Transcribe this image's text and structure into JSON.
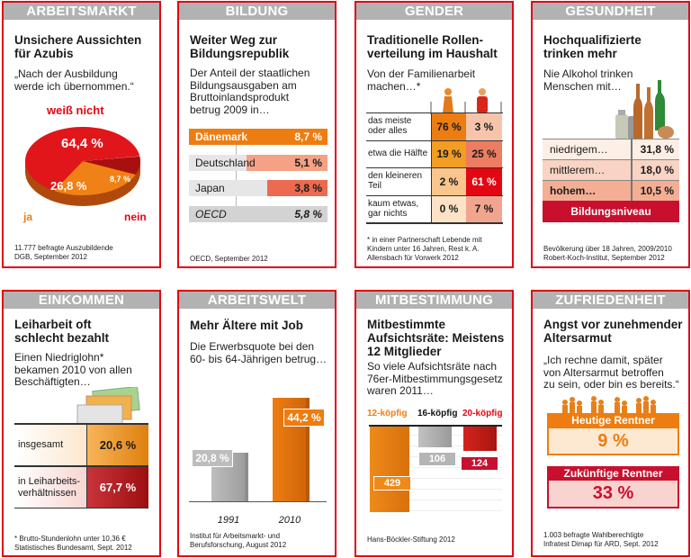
{
  "panels": [
    {
      "category": "ARBEITSMARKT",
      "title": "Unsichere Aussichten\nfür Azubis",
      "subtitle": "„Nach der Ausbildung\nwerde ich übernommen.“",
      "footnote": "11.777 befragte Auszubildende\nDGB, September 2012"
    },
    {
      "category": "BILDUNG",
      "title": "Weiter Weg zur\nBildungsrepublik",
      "subtitle": "Der Anteil der staatlichen\nBildungsausgaben am\nBruttoinlandsprodukt\nbetrug 2009 in…",
      "footnote": "OECD, September 2012"
    },
    {
      "category": "GENDER",
      "title": "Traditionelle Rollen-\nverteilung im Haushalt",
      "subtitle": "Von der Familienarbeit\nmachen…*",
      "footnote": "* in einer Partnerschaft Lebende mit\nKindern unter 16 Jahren, Rest k. A.\nAllensbach für Vorwerk 2012"
    },
    {
      "category": "GESUNDHEIT",
      "title": "Hochqualifizierte\ntrinken mehr",
      "subtitle": "Nie Alkohol trinken\nMenschen mit…",
      "footnote": "Bevölkerung über 18 Jahren, 2009/2010\nRobert-Koch-Institut, September 2012"
    },
    {
      "category": "EINKOMMEN",
      "title": "Leiharbeit oft\nschlecht bezahlt",
      "subtitle": "Einen Niedriglohn*\nbekamen 2010 von allen\nBeschäftigten…",
      "footnote": "* Brutto-Stundenlohn unter 10,36 €\nStatistisches Bundesamt, Sept. 2012"
    },
    {
      "category": "ARBEITSWELT",
      "title": "Mehr Ältere mit Job",
      "subtitle": "Die Erwerbsquote bei den\n60- bis 64-Jährigen betrug…",
      "footnote": "Institut für Arbeitsmarkt- und\nBerufsforschung, August 2012"
    },
    {
      "category": "MITBESTIMMUNG",
      "title": "Mitbestimmte\nAufsichtsräte: Meistens\n12 Mitglieder",
      "subtitle": "So viele Aufsichtsräte nach\n76er-Mitbestimmungsgesetz\nwaren 2011…",
      "footnote": "Hans-Böckler-Stiftung 2012"
    },
    {
      "category": "ZUFRIEDENHEIT",
      "title": "Angst vor zunehmender\nAltersarmut",
      "subtitle": "„Ich rechne damit, später\nvon Altersarmut betroffen\nzu sein, oder bin es bereits.“",
      "footnote": "1.003 befragte Wahlberechtigte\nInfratest Dimap für ARD, Sept. 2012"
    }
  ],
  "colors": {
    "border": "#e30613",
    "header": "#b2b2b2",
    "orange": "#ee7d11",
    "red": "#e30613",
    "darkred": "#b5121b",
    "grey": "#c6c6c6"
  },
  "chart_data": [
    {
      "type": "pie",
      "slices": [
        {
          "label": "weiß nicht",
          "value": 64.4,
          "display": "64,4 %",
          "color": "#e0161b"
        },
        {
          "label": "nein",
          "value": 8.7,
          "display": "8,7 %",
          "color": "#a8100f"
        },
        {
          "label": "ja",
          "value": 26.8,
          "display": "26,8 %",
          "color": "#ef8116"
        }
      ]
    },
    {
      "type": "bar",
      "orientation": "horizontal",
      "unit": "%",
      "xlim": [
        0,
        8.7
      ],
      "categories": [
        "Dänemark",
        "Deutschland",
        "Japan",
        "OECD"
      ],
      "values": [
        8.7,
        5.1,
        3.8,
        5.8
      ],
      "display": [
        "8,7 %",
        "5,1 %",
        "3,8 %",
        "5,8 %"
      ],
      "colors": [
        "#ee7d11",
        "#f4a185",
        "#ec6a4f",
        "#d3d3d3"
      ]
    },
    {
      "type": "table",
      "columns": [
        "Frauen",
        "Männer"
      ],
      "rows": [
        {
          "label": "das meiste\noder alles",
          "values": [
            "76 %",
            "3 %"
          ],
          "colors": [
            "#ee7d11",
            "#f7c4ab"
          ]
        },
        {
          "label": "etwa die Hälfte",
          "values": [
            "19 %",
            "25 %"
          ],
          "colors": [
            "#f29d23",
            "#ec7c62"
          ]
        },
        {
          "label": "den kleineren\nTeil",
          "values": [
            "2 %",
            "61 %"
          ],
          "colors": [
            "#f8c68c",
            "#e30613"
          ]
        },
        {
          "label": "kaum etwas,\ngar nichts",
          "values": [
            "0 %",
            "7 %"
          ],
          "colors": [
            "#fde3c6",
            "#f1a58f"
          ]
        }
      ]
    },
    {
      "type": "table",
      "rows": [
        {
          "label": "niedrigem…",
          "value": "31,8 %",
          "color": "#fdeee6"
        },
        {
          "label": "mittlerem…",
          "value": "18,0 %",
          "color": "#f9d3c3"
        },
        {
          "label": "hohem…",
          "value": "10,5 %",
          "color": "#f3ae94"
        }
      ],
      "footer": "Bildungsniveau"
    },
    {
      "type": "table",
      "rows": [
        {
          "label": "insgesamt",
          "value": "20,6 %"
        },
        {
          "label": "in Leiharbeits-\nverhältnissen",
          "value": "67,7 %"
        }
      ]
    },
    {
      "type": "bar",
      "unit": "%",
      "categories": [
        "1991",
        "2010"
      ],
      "values": [
        20.8,
        44.2
      ],
      "display": [
        "20,8 %",
        "44,2 %"
      ],
      "colors": [
        "#bdbdbd",
        "#ee7d11"
      ]
    },
    {
      "type": "bar",
      "categories": [
        "12-köpfig",
        "16-köpfig",
        "20-köpfig"
      ],
      "values": [
        429,
        106,
        124
      ],
      "display": [
        "429",
        "106",
        "124"
      ],
      "colors": [
        "#ee8a1a",
        "#c2c2c2",
        "#d4241c"
      ]
    },
    {
      "type": "table",
      "rows": [
        {
          "label": "Heutige Rentner",
          "value": "9 %"
        },
        {
          "label": "Zukünftige Rentner",
          "value": "33 %"
        }
      ]
    }
  ]
}
